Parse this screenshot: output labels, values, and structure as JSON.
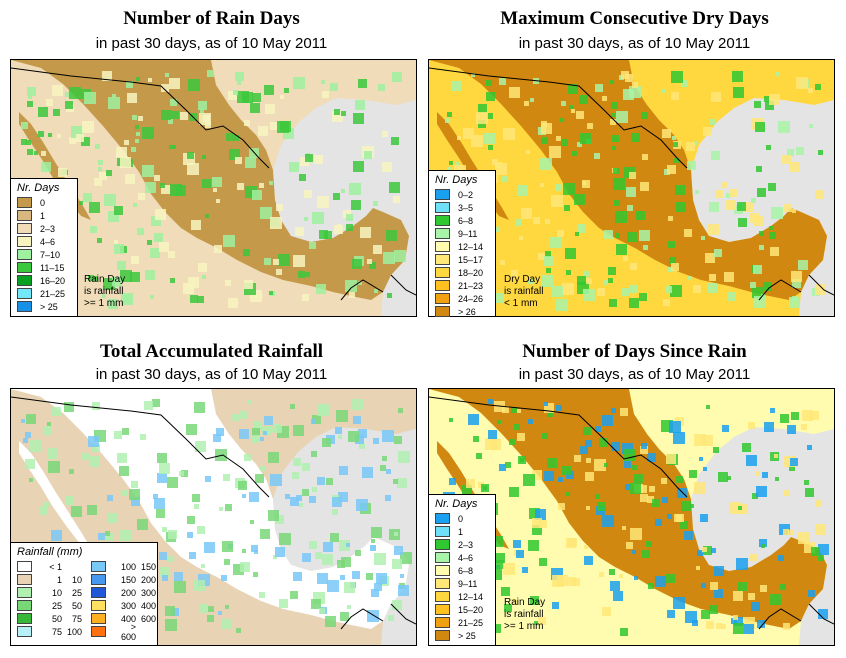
{
  "colors": {
    "ocean": "#e4e4e4",
    "pal_rain": [
      "#c49a4a",
      "#d8b880",
      "#f0dcb8",
      "#f8f4c0",
      "#9ff09f",
      "#3cc83c",
      "#08a020",
      "#74e8f8",
      "#1890e8"
    ],
    "pal_dry": [
      "#1aa0f0",
      "#70e0f8",
      "#30c830",
      "#a8f4a8",
      "#fffcb0",
      "#ffe878",
      "#ffd840",
      "#ffc020",
      "#f0a010",
      "#d08810"
    ],
    "pal_total": [
      "#ffffff",
      "#e8d4b4",
      "#b0f0b0",
      "#78d878",
      "#38b838",
      "#b8f0f8",
      "#78c8f8",
      "#4898f0",
      "#2058d8",
      "#ffe060",
      "#ffb020",
      "#ff7010",
      "#ff2010"
    ]
  },
  "panels": [
    {
      "id": "rain-days",
      "title": "Number of Rain Days",
      "subtitle": "in past 30 days, as of  10 May 2011",
      "legend": {
        "title": "Nr. Days",
        "items": [
          "0",
          "1",
          "2–3",
          "4–6",
          "7–10",
          "11–15",
          "16–20",
          "21–25",
          "> 25"
        ]
      },
      "note": [
        "Rain Day",
        "is rainfall",
        ">= 1 mm"
      ]
    },
    {
      "id": "dry-days",
      "title": "Maximum Consecutive Dry Days",
      "subtitle": "in past 30 days, as of  10 May 2011",
      "legend": {
        "title": "Nr. Days",
        "items": [
          "0–2",
          "3–5",
          "6–8",
          "9–11",
          "12–14",
          "15–17",
          "18–20",
          "21–23",
          "24–26",
          "> 26"
        ]
      },
      "note": [
        "Dry Day",
        "is rainfall",
        "< 1 mm"
      ]
    },
    {
      "id": "total-rainfall",
      "title": "Total Accumulated Rainfall",
      "subtitle": "in past 30 days, as of  10 May 2011",
      "legend": {
        "title": "Rainfall (mm)",
        "col1": [
          [
            "< 1",
            ""
          ],
          [
            "1",
            "10"
          ],
          [
            "10",
            "25"
          ],
          [
            "25",
            "50"
          ],
          [
            "50",
            "75"
          ],
          [
            "75",
            "100"
          ]
        ],
        "col2": [
          [
            "100",
            "150"
          ],
          [
            "150",
            "200"
          ],
          [
            "200",
            "300"
          ],
          [
            "300",
            "400"
          ],
          [
            "400",
            "600"
          ],
          [
            "> 600",
            ""
          ]
        ]
      }
    },
    {
      "id": "days-since-rain",
      "title": "Number of Days Since Rain",
      "subtitle": "in past 30 days, as of  10 May 2011",
      "legend": {
        "title": "Nr. Days",
        "items": [
          "0",
          "1",
          "2–3",
          "4–6",
          "6–8",
          "9–11",
          "12–14",
          "15–20",
          "21–25",
          "> 25"
        ]
      },
      "note": [
        "Rain Day",
        "is rainfall",
        ">= 1 mm"
      ]
    }
  ]
}
